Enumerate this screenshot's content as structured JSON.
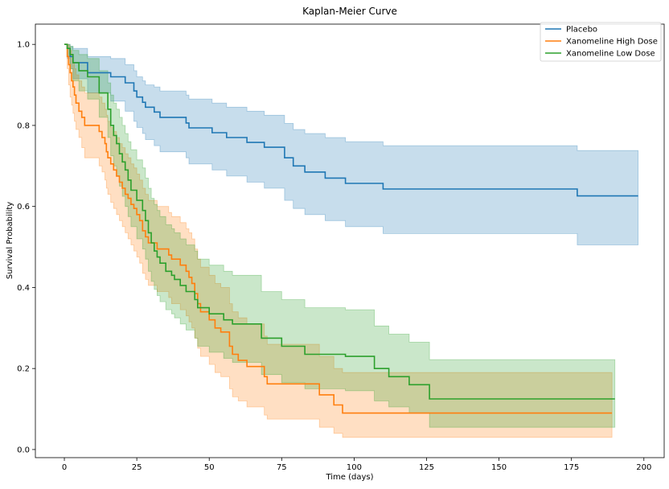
{
  "chart_data": {
    "type": "line",
    "title": "Kaplan-Meier Curve",
    "xlabel": "Time (days)",
    "ylabel": "Survival Probability",
    "xlim": [
      -10,
      207
    ],
    "ylim": [
      -0.02,
      1.05
    ],
    "xticks": [
      0,
      25,
      50,
      75,
      100,
      125,
      150,
      175,
      200
    ],
    "xtick_labels": [
      "0",
      "25",
      "50",
      "75",
      "100",
      "125",
      "150",
      "175",
      "200"
    ],
    "yticks": [
      0.0,
      0.2,
      0.4,
      0.6,
      0.8,
      1.0
    ],
    "ytick_labels": [
      "0.0",
      "0.2",
      "0.4",
      "0.6",
      "0.8",
      "1.0"
    ],
    "grid": false,
    "legend_position": "top-right",
    "step": true,
    "confidence_band_opacity": 0.25,
    "series": [
      {
        "name": "Placebo",
        "color": "#1f77b4",
        "x": [
          0,
          1,
          2,
          3,
          8,
          16,
          21,
          24,
          25,
          27,
          28,
          31,
          33,
          35,
          42,
          43,
          51,
          56,
          63,
          69,
          76,
          79,
          83,
          90,
          97,
          110,
          177,
          198
        ],
        "y": [
          1.0,
          0.99,
          0.97,
          0.955,
          0.93,
          0.92,
          0.905,
          0.885,
          0.87,
          0.857,
          0.845,
          0.833,
          0.82,
          0.82,
          0.806,
          0.794,
          0.782,
          0.77,
          0.758,
          0.746,
          0.72,
          0.7,
          0.685,
          0.67,
          0.657,
          0.643,
          0.626,
          0.626
        ],
        "lower": [
          1.0,
          0.965,
          0.94,
          0.915,
          0.88,
          0.86,
          0.835,
          0.81,
          0.795,
          0.78,
          0.765,
          0.75,
          0.735,
          0.735,
          0.72,
          0.705,
          0.69,
          0.675,
          0.66,
          0.645,
          0.615,
          0.595,
          0.58,
          0.565,
          0.55,
          0.533,
          0.505,
          0.505
        ],
        "upper": [
          1.0,
          1.0,
          0.995,
          0.99,
          0.97,
          0.965,
          0.95,
          0.935,
          0.92,
          0.91,
          0.9,
          0.895,
          0.885,
          0.885,
          0.875,
          0.865,
          0.855,
          0.845,
          0.835,
          0.825,
          0.805,
          0.79,
          0.78,
          0.77,
          0.76,
          0.75,
          0.738,
          0.723
        ]
      },
      {
        "name": "Xanomeline High Dose",
        "color": "#ff7f0e",
        "x": [
          0,
          1,
          1.5,
          2,
          2.5,
          3,
          3.5,
          4,
          5,
          6,
          7,
          12,
          13,
          14,
          14.5,
          15,
          16,
          17,
          18,
          19,
          20,
          21,
          22,
          23,
          24,
          25,
          26,
          27,
          28,
          29,
          30,
          31,
          32,
          35,
          36,
          37,
          38,
          40,
          42,
          43,
          44,
          45,
          46,
          47,
          50,
          52,
          54,
          57,
          58,
          60,
          63,
          69,
          70,
          76,
          88,
          93,
          96,
          110,
          189
        ],
        "y": [
          1.0,
          0.97,
          0.95,
          0.93,
          0.91,
          0.895,
          0.875,
          0.855,
          0.835,
          0.82,
          0.8,
          0.785,
          0.77,
          0.755,
          0.735,
          0.72,
          0.705,
          0.69,
          0.675,
          0.66,
          0.645,
          0.63,
          0.62,
          0.605,
          0.595,
          0.58,
          0.565,
          0.54,
          0.525,
          0.51,
          0.51,
          0.51,
          0.495,
          0.495,
          0.48,
          0.47,
          0.47,
          0.455,
          0.44,
          0.425,
          0.41,
          0.385,
          0.36,
          0.34,
          0.32,
          0.3,
          0.29,
          0.255,
          0.235,
          0.22,
          0.205,
          0.18,
          0.162,
          0.162,
          0.135,
          0.11,
          0.09,
          0.09,
          0.09
        ],
        "lower": [
          1.0,
          0.94,
          0.9,
          0.87,
          0.85,
          0.83,
          0.81,
          0.79,
          0.77,
          0.745,
          0.72,
          0.7,
          0.685,
          0.665,
          0.645,
          0.63,
          0.61,
          0.595,
          0.58,
          0.565,
          0.55,
          0.535,
          0.52,
          0.505,
          0.49,
          0.475,
          0.46,
          0.435,
          0.42,
          0.405,
          0.405,
          0.405,
          0.39,
          0.39,
          0.375,
          0.36,
          0.36,
          0.345,
          0.33,
          0.315,
          0.3,
          0.275,
          0.25,
          0.23,
          0.21,
          0.19,
          0.18,
          0.15,
          0.13,
          0.12,
          0.105,
          0.085,
          0.075,
          0.075,
          0.055,
          0.04,
          0.03,
          0.03,
          0.03
        ],
        "upper": [
          1.0,
          1.0,
          0.995,
          0.985,
          0.97,
          0.955,
          0.94,
          0.925,
          0.91,
          0.895,
          0.88,
          0.87,
          0.855,
          0.84,
          0.825,
          0.81,
          0.795,
          0.785,
          0.77,
          0.755,
          0.745,
          0.73,
          0.72,
          0.705,
          0.695,
          0.68,
          0.665,
          0.645,
          0.63,
          0.615,
          0.615,
          0.615,
          0.6,
          0.6,
          0.585,
          0.575,
          0.575,
          0.56,
          0.545,
          0.535,
          0.52,
          0.495,
          0.47,
          0.45,
          0.43,
          0.41,
          0.4,
          0.36,
          0.34,
          0.325,
          0.31,
          0.28,
          0.26,
          0.26,
          0.23,
          0.2,
          0.19,
          0.19,
          0.19
        ]
      },
      {
        "name": "Xanomeline Low Dose",
        "color": "#2ca02c",
        "x": [
          0,
          1,
          2,
          3,
          5,
          8,
          12,
          15,
          16,
          17,
          18,
          19,
          20,
          21,
          22,
          23,
          25,
          27,
          28,
          29,
          30,
          31,
          32,
          33,
          35,
          37,
          38,
          40,
          42,
          45,
          46,
          48,
          50,
          55,
          58,
          61,
          64,
          68,
          75,
          83,
          97,
          107,
          112,
          119,
          126,
          190
        ],
        "y": [
          1.0,
          0.99,
          0.975,
          0.955,
          0.935,
          0.92,
          0.88,
          0.84,
          0.8,
          0.775,
          0.755,
          0.73,
          0.71,
          0.69,
          0.665,
          0.64,
          0.615,
          0.59,
          0.565,
          0.535,
          0.51,
          0.49,
          0.475,
          0.46,
          0.44,
          0.43,
          0.42,
          0.405,
          0.39,
          0.37,
          0.35,
          0.35,
          0.335,
          0.32,
          0.31,
          0.31,
          0.31,
          0.275,
          0.255,
          0.235,
          0.23,
          0.2,
          0.18,
          0.16,
          0.125,
          0.125
        ],
        "lower": [
          1.0,
          0.97,
          0.94,
          0.91,
          0.885,
          0.865,
          0.82,
          0.77,
          0.725,
          0.7,
          0.675,
          0.65,
          0.625,
          0.6,
          0.575,
          0.55,
          0.52,
          0.495,
          0.47,
          0.44,
          0.415,
          0.395,
          0.38,
          0.365,
          0.345,
          0.335,
          0.325,
          0.31,
          0.295,
          0.275,
          0.255,
          0.255,
          0.24,
          0.225,
          0.215,
          0.215,
          0.215,
          0.185,
          0.165,
          0.15,
          0.145,
          0.12,
          0.105,
          0.09,
          0.055,
          0.055
        ],
        "upper": [
          1.0,
          1.0,
          0.995,
          0.985,
          0.975,
          0.965,
          0.935,
          0.905,
          0.875,
          0.855,
          0.84,
          0.82,
          0.8,
          0.78,
          0.76,
          0.74,
          0.715,
          0.695,
          0.67,
          0.645,
          0.62,
          0.605,
          0.59,
          0.575,
          0.555,
          0.545,
          0.535,
          0.52,
          0.505,
          0.49,
          0.47,
          0.47,
          0.455,
          0.44,
          0.43,
          0.43,
          0.43,
          0.39,
          0.37,
          0.35,
          0.345,
          0.305,
          0.285,
          0.265,
          0.222,
          0.222
        ]
      }
    ]
  }
}
